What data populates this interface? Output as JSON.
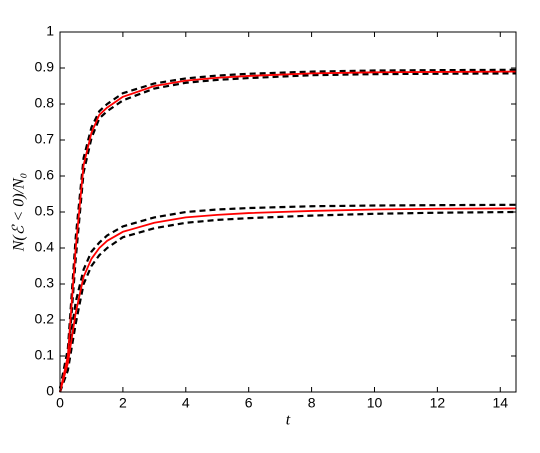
{
  "chart_data": {
    "type": "line",
    "x_label": "t",
    "y_label": "N(ℰ < 0)/N₀",
    "x": [
      0,
      0.25,
      0.5,
      0.75,
      1,
      1.25,
      1.5,
      2,
      3,
      4,
      5,
      6,
      8,
      10,
      12,
      14.5
    ],
    "series": [
      {
        "color": "#000000",
        "dashed": true,
        "values": [
          0.01,
          0.12,
          0.43,
          0.65,
          0.735,
          0.78,
          0.8,
          0.83,
          0.857,
          0.871,
          0.879,
          0.884,
          0.89,
          0.893,
          0.894,
          0.895
        ]
      },
      {
        "color": "#000000",
        "dashed": true,
        "values": [
          0,
          0.08,
          0.37,
          0.61,
          0.705,
          0.76,
          0.78,
          0.81,
          0.843,
          0.859,
          0.867,
          0.872,
          0.88,
          0.883,
          0.884,
          0.885
        ]
      },
      {
        "color": "#000000",
        "dashed": true,
        "values": [
          0.01,
          0.1,
          0.25,
          0.34,
          0.39,
          0.415,
          0.435,
          0.46,
          0.485,
          0.5,
          0.507,
          0.511,
          0.516,
          0.518,
          0.519,
          0.52
        ]
      },
      {
        "color": "#000000",
        "dashed": true,
        "values": [
          0,
          0.06,
          0.19,
          0.3,
          0.35,
          0.38,
          0.4,
          0.43,
          0.455,
          0.47,
          0.478,
          0.483,
          0.49,
          0.495,
          0.498,
          0.5
        ]
      },
      {
        "color": "#ff0000",
        "dashed": false,
        "values": [
          0,
          0.1,
          0.4,
          0.63,
          0.72,
          0.77,
          0.79,
          0.82,
          0.85,
          0.865,
          0.873,
          0.878,
          0.885,
          0.888,
          0.889,
          0.89
        ]
      },
      {
        "color": "#ff0000",
        "dashed": false,
        "values": [
          0,
          0.08,
          0.22,
          0.32,
          0.37,
          0.4,
          0.42,
          0.445,
          0.47,
          0.485,
          0.492,
          0.497,
          0.503,
          0.507,
          0.509,
          0.51
        ]
      }
    ],
    "xlim": [
      0,
      14.5
    ],
    "xticks": [
      0,
      2,
      4,
      6,
      8,
      10,
      12,
      14
    ],
    "ylim": [
      0,
      1
    ],
    "yticks": [
      0,
      0.1,
      0.2,
      0.3,
      0.4,
      0.5,
      0.6,
      0.7,
      0.8,
      0.9,
      1
    ],
    "grid": false
  }
}
